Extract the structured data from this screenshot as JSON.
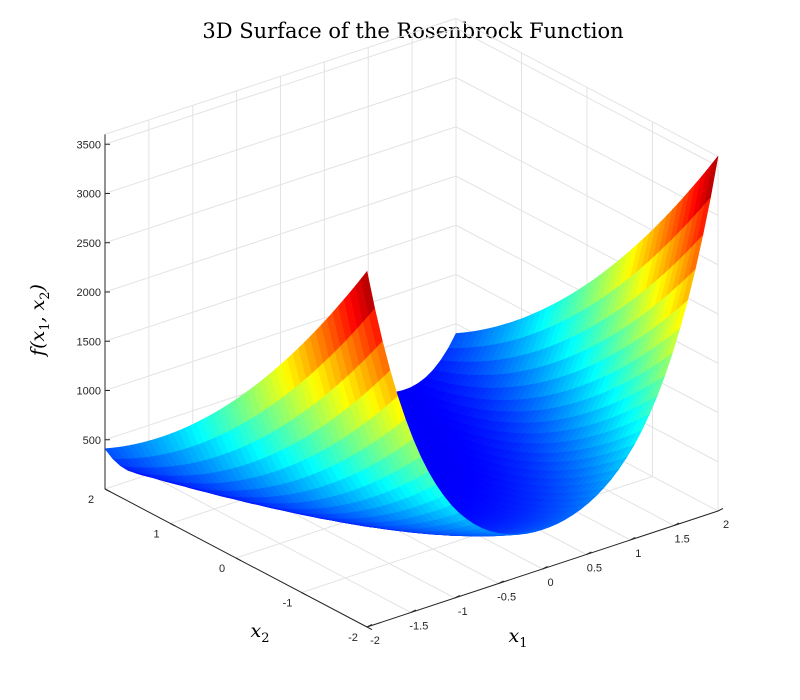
{
  "chart_data": {
    "type": "surface",
    "title": "3D Surface of the Rosenbrock Function",
    "function": "f(x1, x2) = 100*(x2 - x1^2)^2 + (1 - x1)^2",
    "xlabel": "x1",
    "ylabel": "x2",
    "zlabel": "f(x1, x2)",
    "xlim": [
      -2,
      2
    ],
    "ylim": [
      -2,
      2
    ],
    "zlim": [
      0,
      3600
    ],
    "x_ticks": [
      "-2",
      "-1.5",
      "-1",
      "-0.5",
      "0",
      "0.5",
      "1",
      "1.5",
      "2"
    ],
    "y_ticks": [
      "-2",
      "-1",
      "0",
      "1",
      "2"
    ],
    "z_ticks": [
      "500",
      "1000",
      "1500",
      "2000",
      "2500",
      "3000",
      "3500"
    ],
    "z_tick_values": [
      500,
      1000,
      1500,
      2000,
      2500,
      3000,
      3500
    ],
    "colormap": "jet",
    "grid": true,
    "sample_points": [
      {
        "x1": -2,
        "x2": -2,
        "f": 3609
      },
      {
        "x1": 2,
        "x2": -2,
        "f": 3601
      },
      {
        "x1": -2,
        "x2": 2,
        "f": 409
      },
      {
        "x1": 2,
        "x2": 2,
        "f": 401
      },
      {
        "x1": 1,
        "x2": 1,
        "f": 0
      }
    ]
  }
}
